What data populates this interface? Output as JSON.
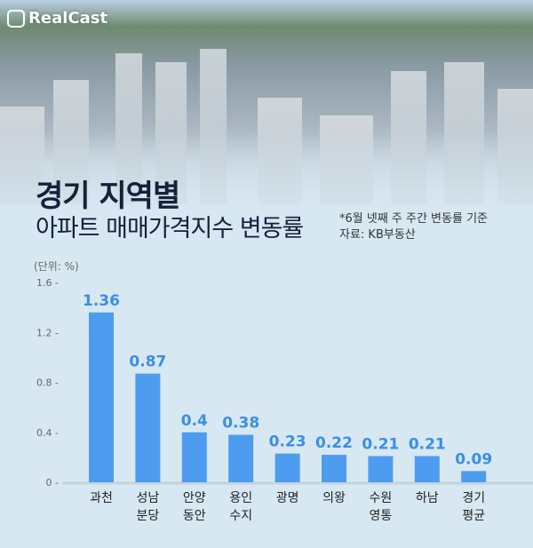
{
  "logo": "RealCast",
  "title": "경기 지역별",
  "subtitle": "아파트 매매가격지수 변동률",
  "note": "*6월 넷째 주 주간 변동률 기준",
  "source": "자료: KB부동산",
  "chart_data": {
    "type": "bar",
    "title": "경기 지역별 아파트 매매가격지수 변동률",
    "unit_label": "(단위: %)",
    "categories": [
      [
        "과천"
      ],
      [
        "성남",
        "분당"
      ],
      [
        "안양",
        "동안"
      ],
      [
        "용인",
        "수지"
      ],
      [
        "광명"
      ],
      [
        "의왕"
      ],
      [
        "수원",
        "영통"
      ],
      [
        "하남"
      ],
      [
        "경기",
        "평균"
      ]
    ],
    "values": [
      1.36,
      0.87,
      0.4,
      0.38,
      0.23,
      0.22,
      0.21,
      0.21,
      0.09
    ],
    "value_labels": [
      "1.36",
      "0.87",
      "0.4",
      "0.38",
      "0.23",
      "0.22",
      "0.21",
      "0.21",
      "0.09"
    ],
    "yticks": [
      "0",
      "0.4",
      "0.8",
      "1.2",
      "1.6"
    ],
    "ylim": [
      0,
      1.6
    ],
    "bar_color": "#4d9cf0",
    "label_color": "#3a8ee8"
  }
}
